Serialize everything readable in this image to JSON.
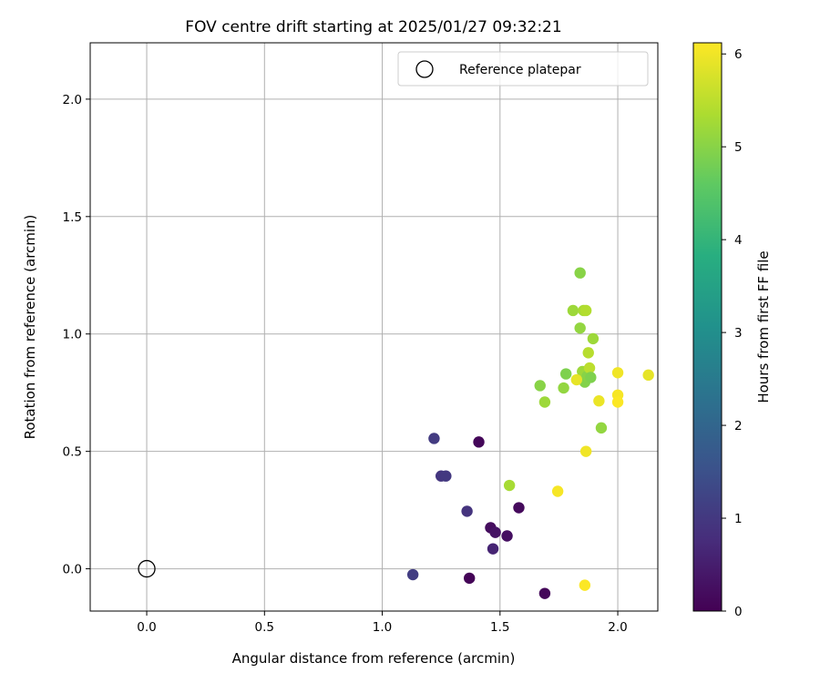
{
  "chart_data": {
    "type": "scatter",
    "title": "FOV centre drift starting at 2025/01/27 09:32:21",
    "xlabel": "Angular distance from reference (arcmin)",
    "ylabel": "Rotation from reference (arcmin)",
    "xlim": [
      -0.24,
      2.17
    ],
    "ylim": [
      -0.18,
      2.24
    ],
    "xticks": [
      0.0,
      0.5,
      1.0,
      1.5,
      2.0
    ],
    "xtick_labels": [
      "0.0",
      "0.5",
      "1.0",
      "1.5",
      "2.0"
    ],
    "yticks": [
      0.0,
      0.5,
      1.0,
      1.5,
      2.0
    ],
    "ytick_labels": [
      "0.0",
      "0.5",
      "1.0",
      "1.5",
      "2.0"
    ],
    "grid": true,
    "legend": {
      "position": "top-right",
      "entries": [
        {
          "label": "Reference platepar",
          "marker": "open-circle",
          "color": "#000000"
        }
      ]
    },
    "reference_point": {
      "x": 0.0,
      "y": 0.0
    },
    "colorbar": {
      "label": "Hours from first FF file",
      "colormap": "viridis",
      "min": 0,
      "max": 6.12,
      "ticks": [
        0,
        1,
        2,
        3,
        4,
        5,
        6
      ],
      "tick_labels": [
        "0",
        "1",
        "2",
        "3",
        "4",
        "5",
        "6"
      ]
    },
    "points": [
      {
        "x": 1.37,
        "y": -0.04,
        "hours": 0.05
      },
      {
        "x": 1.69,
        "y": -0.105,
        "hours": 0.1
      },
      {
        "x": 1.46,
        "y": 0.175,
        "hours": 0.2
      },
      {
        "x": 1.48,
        "y": 0.155,
        "hours": 0.3
      },
      {
        "x": 1.53,
        "y": 0.14,
        "hours": 0.25
      },
      {
        "x": 1.58,
        "y": 0.26,
        "hours": 0.15
      },
      {
        "x": 1.41,
        "y": 0.54,
        "hours": 0.1
      },
      {
        "x": 1.47,
        "y": 0.085,
        "hours": 0.6
      },
      {
        "x": 1.36,
        "y": 0.245,
        "hours": 0.9
      },
      {
        "x": 1.25,
        "y": 0.395,
        "hours": 0.95
      },
      {
        "x": 1.27,
        "y": 0.395,
        "hours": 1.0
      },
      {
        "x": 1.22,
        "y": 0.555,
        "hours": 1.05
      },
      {
        "x": 1.13,
        "y": -0.025,
        "hours": 1.1
      },
      {
        "x": 1.54,
        "y": 0.355,
        "hours": 5.3
      },
      {
        "x": 1.67,
        "y": 0.78,
        "hours": 5.0
      },
      {
        "x": 1.69,
        "y": 0.71,
        "hours": 5.2
      },
      {
        "x": 1.77,
        "y": 0.77,
        "hours": 5.1
      },
      {
        "x": 1.78,
        "y": 0.83,
        "hours": 4.9
      },
      {
        "x": 1.81,
        "y": 1.1,
        "hours": 5.2
      },
      {
        "x": 1.84,
        "y": 1.26,
        "hours": 5.0
      },
      {
        "x": 1.84,
        "y": 1.025,
        "hours": 5.1
      },
      {
        "x": 1.855,
        "y": 1.1,
        "hours": 5.3
      },
      {
        "x": 1.865,
        "y": 1.1,
        "hours": 5.4
      },
      {
        "x": 1.85,
        "y": 0.84,
        "hours": 5.2
      },
      {
        "x": 1.86,
        "y": 0.795,
        "hours": 4.95
      },
      {
        "x": 1.87,
        "y": 0.82,
        "hours": 5.0
      },
      {
        "x": 1.875,
        "y": 0.92,
        "hours": 5.45
      },
      {
        "x": 1.88,
        "y": 0.855,
        "hours": 5.5
      },
      {
        "x": 1.885,
        "y": 0.815,
        "hours": 4.9
      },
      {
        "x": 1.895,
        "y": 0.98,
        "hours": 5.2
      },
      {
        "x": 1.93,
        "y": 0.6,
        "hours": 5.1
      },
      {
        "x": 1.825,
        "y": 0.805,
        "hours": 5.9
      },
      {
        "x": 1.865,
        "y": 0.5,
        "hours": 6.0
      },
      {
        "x": 1.92,
        "y": 0.715,
        "hours": 5.95
      },
      {
        "x": 2.0,
        "y": 0.835,
        "hours": 6.0
      },
      {
        "x": 2.0,
        "y": 0.74,
        "hours": 6.05
      },
      {
        "x": 2.0,
        "y": 0.71,
        "hours": 6.1
      },
      {
        "x": 2.13,
        "y": 0.825,
        "hours": 5.9
      },
      {
        "x": 1.745,
        "y": 0.33,
        "hours": 6.05
      },
      {
        "x": 1.86,
        "y": -0.07,
        "hours": 6.1
      }
    ]
  }
}
